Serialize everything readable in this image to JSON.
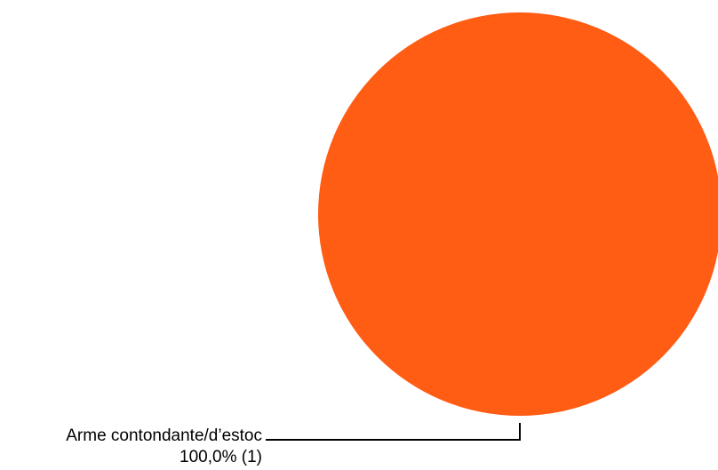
{
  "chart_data": {
    "type": "pie",
    "title": "",
    "slices": [
      {
        "label": "Arme contondante/d’estoc",
        "value": 1,
        "percent_label": "100,0% (1)",
        "color": "#ff5c14"
      }
    ],
    "legend": "none"
  }
}
